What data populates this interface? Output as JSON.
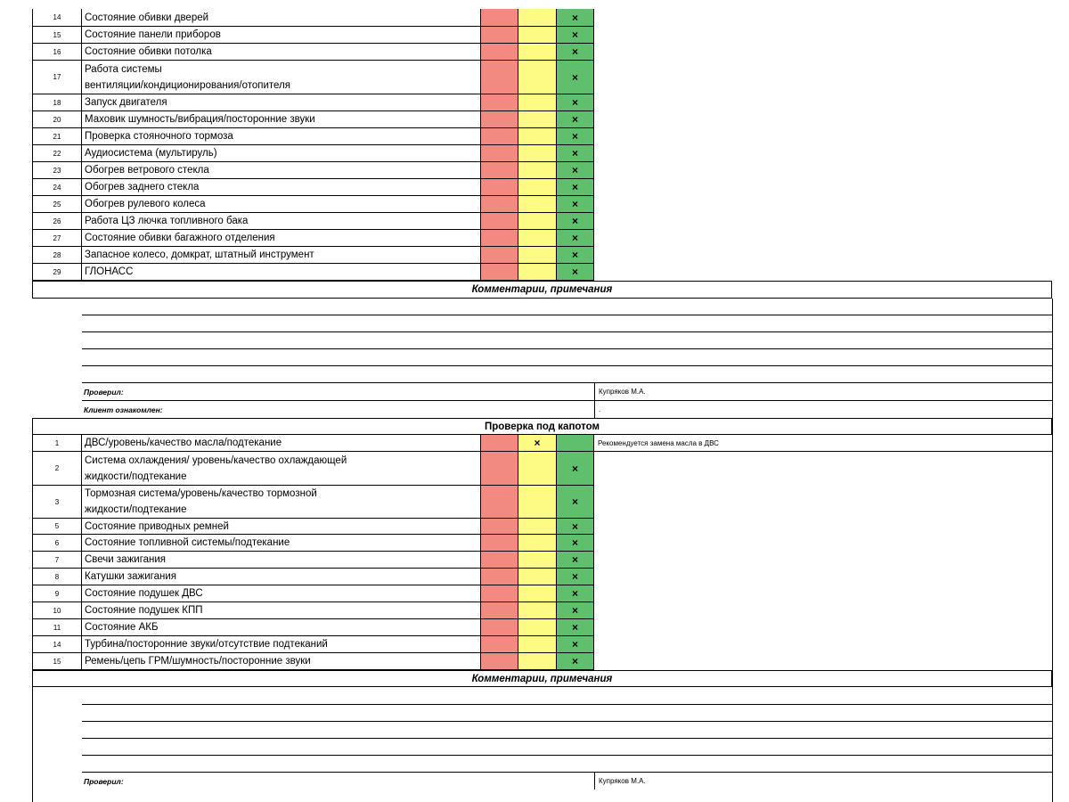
{
  "mark": "×",
  "section1": {
    "rows": [
      {
        "num": "14",
        "name": "Состояние обивки дверей"
      },
      {
        "num": "15",
        "name": "Состояние панели приборов"
      },
      {
        "num": "16",
        "name": "Состояние обивки потолка"
      },
      {
        "num": "17",
        "name": "Работа системы\nвентиляции/кондиционирования/отопителя"
      },
      {
        "num": "18",
        "name": "Запуск двигателя"
      },
      {
        "num": "20",
        "name": "Маховик шумность/вибрация/посторонние звуки"
      },
      {
        "num": "21",
        "name": "Проверка стояночного тормоза"
      },
      {
        "num": "22",
        "name": "Аудиосистема (мультируль)"
      },
      {
        "num": "23",
        "name": "Обогрев ветрового стекла"
      },
      {
        "num": "24",
        "name": "Обогрев заднего стекла"
      },
      {
        "num": "25",
        "name": "Обогрев рулевого колеса"
      },
      {
        "num": "26",
        "name": "Работа ЦЗ лючка топливного бака"
      },
      {
        "num": "27",
        "name": "Состояние обивки багажного отделения"
      },
      {
        "num": "28",
        "name": "Запасное колесо, домкрат, штатный инструмент"
      },
      {
        "num": "29",
        "name": "ГЛОНАСС"
      }
    ],
    "comments_title": "Комментарии, примечания",
    "checked_label": "Проверил:",
    "checked_value": "Купряков М.А.",
    "client_label": "Клиент ознакомлен:",
    "client_value": "."
  },
  "section2": {
    "title": "Проверка под капотом",
    "rows": [
      {
        "num": "1",
        "name": "ДВС/уровень/качество масла/подтекание",
        "status": "yellow",
        "note": "Рекомендуется замена масла в ДВС"
      },
      {
        "num": "2",
        "name": "Система охлаждения/ уровень/качество охлаждающей\nжидкости/подтекание",
        "status": "green",
        "note": ""
      },
      {
        "num": "3",
        "name": "Тормозная система/уровень/качество тормозной\nжидкости/подтекание",
        "status": "green",
        "note": ""
      },
      {
        "num": "5",
        "name": "Состояние приводных ремней",
        "status": "green",
        "note": ""
      },
      {
        "num": "6",
        "name": "Состояние топливной системы/подтекание",
        "status": "green",
        "note": ""
      },
      {
        "num": "7",
        "name": "Свечи зажигания",
        "status": "green",
        "note": ""
      },
      {
        "num": "8",
        "name": "Катушки зажигания",
        "status": "green",
        "note": ""
      },
      {
        "num": "9",
        "name": "Состояние подушек ДВС",
        "status": "green",
        "note": ""
      },
      {
        "num": "10",
        "name": "Состояние подушек КПП",
        "status": "green",
        "note": ""
      },
      {
        "num": "11",
        "name": "Состояние АКБ",
        "status": "green",
        "note": ""
      },
      {
        "num": "14",
        "name": "Турбина/посторонние звуки/отсутствие подтеканий",
        "status": "green",
        "note": ""
      },
      {
        "num": "15",
        "name": "Ремень/цепь ГРМ/шумность/посторонние звуки",
        "status": "green",
        "note": ""
      }
    ],
    "comments_title": "Комментарии, примечания",
    "checked_label": "Проверил:",
    "checked_value": "Купряков М.А."
  },
  "colors": {
    "red": "#f38a82",
    "yellow": "#fdfb84",
    "green": "#5fbf6c"
  }
}
